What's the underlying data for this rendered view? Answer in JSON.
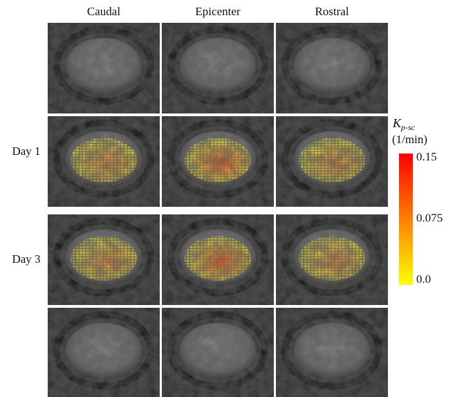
{
  "columns": [
    "Caudal",
    "Epicenter",
    "Rostral"
  ],
  "rows": [
    "Day 1",
    "Day 3"
  ],
  "colorbar": {
    "title": "K",
    "title_subscript": "p-sc",
    "unit": "(1/min)",
    "lim": [
      0,
      0.15
    ],
    "ticks": [
      {
        "value": 0.15,
        "label": "0.15"
      },
      {
        "value": 0.075,
        "label": "0.075"
      },
      {
        "value": 0,
        "label": "0.0"
      }
    ],
    "colors": [
      "#ffff00",
      "#ff0000"
    ]
  }
}
